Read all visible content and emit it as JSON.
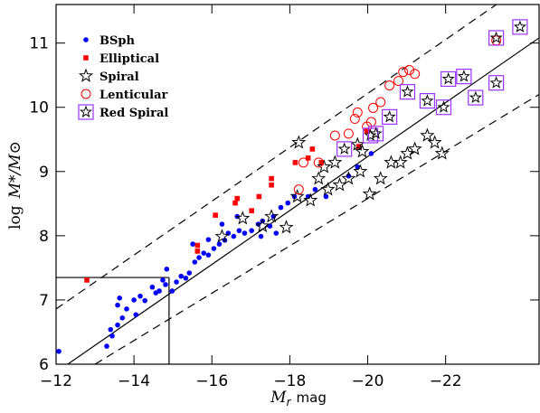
{
  "chart_data": {
    "type": "scatter",
    "xlabel": {
      "symbol": "M",
      "subscript": "r",
      "unit": "mag"
    },
    "ylabel": {
      "prefix": "log",
      "expr": "M*/M⊙"
    },
    "xlim": [
      -12,
      -24.4
    ],
    "ylim": [
      6,
      11.6
    ],
    "xticks": [
      {
        "value": -12,
        "label": "−12"
      },
      {
        "value": -14,
        "label": "−14"
      },
      {
        "value": -16,
        "label": "−16"
      },
      {
        "value": -18,
        "label": "−18"
      },
      {
        "value": -20,
        "label": "−20"
      },
      {
        "value": -22,
        "label": "−22"
      }
    ],
    "yticks": [
      6,
      7,
      8,
      9,
      10,
      11
    ],
    "legend": "upper left",
    "series": [
      {
        "name": "BSph",
        "marker": "dot",
        "color": "#0000ff",
        "x": [
          -12.07,
          -13.3,
          -13.44,
          -13.58,
          -13.7,
          -13.4,
          -13.58,
          -13.63,
          -13.81,
          -14.0,
          -14.16,
          -14.28,
          -14.47,
          -14.56,
          -14.65,
          -14.74,
          -14.84,
          -14.98,
          -15.09,
          -15.21,
          -15.33,
          -15.42,
          -15.56,
          -15.67,
          -15.79,
          -15.91,
          -16.05,
          -16.19,
          -16.33,
          -16.42,
          -16.56,
          -16.7,
          -16.84,
          -17.02,
          -17.19,
          -17.3,
          -17.49,
          -17.58,
          -17.77,
          -17.95,
          -18.12,
          -18.47,
          -18.65,
          -18.93,
          -19.51,
          -19.74,
          -20.09,
          -16.26,
          -16.65,
          -15.91,
          -15.51,
          -17.65,
          -17.26,
          -14.81,
          -14.05
        ],
        "values": [
          6.2,
          6.28,
          6.44,
          6.61,
          6.72,
          6.54,
          6.92,
          7.03,
          6.86,
          7.0,
          7.06,
          6.99,
          7.2,
          7.11,
          7.14,
          7.31,
          7.48,
          7.14,
          7.28,
          7.37,
          7.34,
          7.42,
          7.59,
          7.66,
          7.73,
          7.7,
          7.8,
          7.87,
          7.93,
          8.04,
          7.99,
          8.08,
          8.04,
          8.08,
          8.18,
          8.23,
          8.15,
          8.3,
          8.44,
          8.51,
          8.61,
          8.61,
          8.72,
          8.61,
          8.93,
          9.07,
          9.28,
          8.18,
          8.3,
          7.94,
          7.87,
          8.04,
          7.99,
          7.24,
          6.77
        ]
      },
      {
        "name": "Elliptical",
        "marker": "square",
        "color": "#ff0000",
        "x": [
          -12.79,
          -15.63,
          -15.63,
          -16.09,
          -16.6,
          -16.65,
          -17.21,
          -17.53,
          -17.53,
          -18.14,
          -18.47,
          -18.58,
          -18.81,
          -19.77,
          -19.98,
          -17.02
        ],
        "values": [
          7.31,
          7.85,
          7.76,
          8.32,
          8.51,
          8.58,
          8.61,
          8.89,
          8.79,
          9.14,
          9.21,
          9.35,
          9.14,
          9.39,
          9.63,
          8.39
        ]
      },
      {
        "name": "Spiral",
        "marker": "star",
        "color": "#000000",
        "x": [
          -16.26,
          -17.3,
          -17.53,
          -17.91,
          -18.19,
          -18.53,
          -18.23,
          -18.74,
          -18.98,
          -19.28,
          -19.51,
          -19.81,
          -20.05,
          -20.33,
          -20.6,
          -20.84,
          -21.21,
          -21.72,
          -16.79,
          -18.88,
          -19.16,
          -19.74,
          -19.86,
          -21.02,
          -21.53,
          -21.91
        ],
        "values": [
          7.99,
          8.15,
          8.3,
          8.13,
          8.61,
          8.55,
          9.45,
          8.89,
          8.72,
          8.79,
          8.89,
          9.0,
          8.65,
          8.89,
          9.14,
          9.14,
          9.35,
          9.45,
          8.27,
          9.07,
          9.14,
          9.42,
          9.31,
          9.28,
          9.56,
          9.28
        ]
      },
      {
        "name": "Lenticular",
        "marker": "circle",
        "color": "#ff0000",
        "x": [
          -18.23,
          -18.35,
          -19.16,
          -19.51,
          -19.67,
          -19.74,
          -19.98,
          -20.14,
          -20.33,
          -20.56,
          -20.79,
          -20.91,
          -21.07,
          -21.21,
          -23.3,
          -20.09,
          -18.74
        ],
        "values": [
          8.72,
          9.14,
          9.56,
          9.59,
          9.82,
          9.92,
          9.7,
          9.99,
          10.08,
          10.34,
          10.41,
          10.55,
          10.58,
          10.52,
          11.04,
          9.77,
          9.14
        ]
      },
      {
        "name": "Red Spiral",
        "marker": "box",
        "color": "#9933ff",
        "x": [
          -19.4,
          -20.07,
          -20.21,
          -20.56,
          -21.02,
          -21.53,
          -22.47,
          -22.77,
          -23.3,
          -23.3,
          -23.91,
          -21.95,
          -22.07
        ],
        "values": [
          9.35,
          9.56,
          9.59,
          9.85,
          10.24,
          10.1,
          10.48,
          10.15,
          10.38,
          11.08,
          11.25,
          10.0,
          10.44
        ]
      }
    ],
    "lines": [
      {
        "style": "solid",
        "x": [
          -12.3,
          -24.4
        ],
        "y": [
          6.0,
          11.08
        ]
      },
      {
        "style": "dashed",
        "x": [
          -12,
          -24.4
        ],
        "y": [
          6.86,
          12.06
        ]
      },
      {
        "style": "dashed",
        "x": [
          -13.0,
          -24.4
        ],
        "y": [
          6.0,
          10.2
        ]
      },
      {
        "style": "solid",
        "x": [
          -12,
          -14.9
        ],
        "y": [
          7.35,
          7.35
        ]
      },
      {
        "style": "solid",
        "x": [
          -14.9,
          -14.9
        ],
        "y": [
          6,
          7.35
        ]
      }
    ]
  }
}
